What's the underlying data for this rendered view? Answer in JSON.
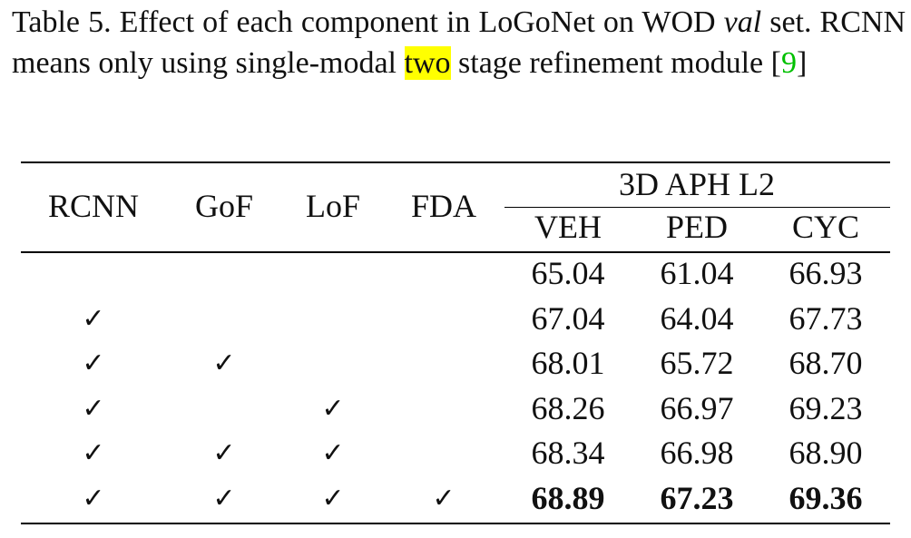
{
  "caption": {
    "part1": "Table 5. Effect of each component in LoGoNet on WOD ",
    "val": "val",
    "part2": " set. RCNN means only using single-modal ",
    "highlight": "two",
    "part3": " stage refinement mod­ule [",
    "cite": "9",
    "part4": "]"
  },
  "table": {
    "component_headers": [
      "RCNN",
      "GoF",
      "LoF",
      "FDA"
    ],
    "group_header": "3D APH L2",
    "metric_headers": [
      "VEH",
      "PED",
      "CYC"
    ],
    "check_glyph": "✓",
    "rows": [
      {
        "checks": [
          false,
          false,
          false,
          false
        ],
        "values": [
          "65.04",
          "61.04",
          "66.93"
        ],
        "bold": false
      },
      {
        "checks": [
          true,
          false,
          false,
          false
        ],
        "values": [
          "67.04",
          "64.04",
          "67.73"
        ],
        "bold": false
      },
      {
        "checks": [
          true,
          true,
          false,
          false
        ],
        "values": [
          "68.01",
          "65.72",
          "68.70"
        ],
        "bold": false
      },
      {
        "checks": [
          true,
          false,
          true,
          false
        ],
        "values": [
          "68.26",
          "66.97",
          "69.23"
        ],
        "bold": false
      },
      {
        "checks": [
          true,
          true,
          true,
          false
        ],
        "values": [
          "68.34",
          "66.98",
          "68.90"
        ],
        "bold": false
      },
      {
        "checks": [
          true,
          true,
          true,
          true
        ],
        "values": [
          "68.89",
          "67.23",
          "69.36"
        ],
        "bold": true
      }
    ]
  }
}
